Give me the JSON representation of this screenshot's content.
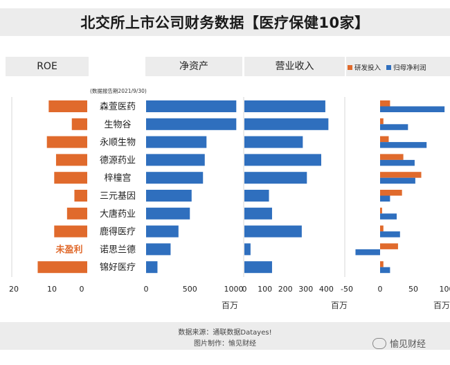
{
  "title": "北交所上市公司财务数据【医疗保健10家】",
  "headers": {
    "roe": "ROE",
    "net_assets": "净资产",
    "revenue": "营业收入"
  },
  "note": "(数据报告期2021/9/30)",
  "legend": {
    "rd": "研发投入",
    "profit": "归母净利润"
  },
  "colors": {
    "orange": "#e06a2c",
    "blue": "#2f6fbe",
    "grey": "#ececec"
  },
  "unloss_label": "未盈利",
  "footer": {
    "source": "数据来源：通联数据Datayes!",
    "maker": "图片制作：愉见财经"
  },
  "watermark": "愉见财经",
  "chart_data": [
    {
      "type": "bar",
      "name": "ROE",
      "categories": [
        "森萱医药",
        "生物谷",
        "永顺生物",
        "德源药业",
        "梓橦宫",
        "三元基因",
        "大唐药业",
        "鹿得医疗",
        "诺思兰德",
        "锦好医疗"
      ],
      "values": [
        10.5,
        4.2,
        11.0,
        8.5,
        9.0,
        3.5,
        5.5,
        9.0,
        null,
        13.5
      ],
      "xlim": [
        0,
        22
      ],
      "reversed": true,
      "xticks": [
        "20",
        "10",
        "0"
      ],
      "annotation": "未盈利"
    },
    {
      "type": "bar",
      "name": "净资产",
      "unit": "百万",
      "values": [
        1030,
        1030,
        690,
        670,
        650,
        520,
        500,
        370,
        280,
        130
      ],
      "xlim": [
        0,
        1000
      ],
      "xticks": [
        "0",
        "500",
        "1000"
      ]
    },
    {
      "type": "bar",
      "name": "营业收入",
      "unit": "百万",
      "values": [
        395,
        410,
        285,
        375,
        305,
        120,
        135,
        280,
        30,
        135
      ],
      "xlim": [
        0,
        400
      ],
      "xticks": [
        "0",
        "100",
        "200",
        "300",
        "400"
      ]
    },
    {
      "type": "bar",
      "name": "研发投入/归母净利润",
      "unit": "百万",
      "series": [
        {
          "name": "研发投入",
          "values": [
            15,
            5,
            13,
            35,
            62,
            33,
            3,
            5,
            27,
            5
          ]
        },
        {
          "name": "归母净利润",
          "values": [
            97,
            42,
            70,
            52,
            53,
            15,
            25,
            30,
            -37,
            15
          ]
        }
      ],
      "xlim": [
        -50,
        100
      ],
      "xticks": [
        "-50",
        "0",
        "50",
        "100"
      ]
    }
  ]
}
